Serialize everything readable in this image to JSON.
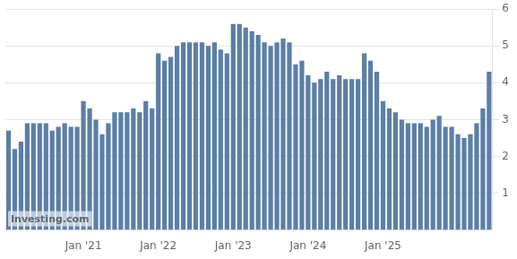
{
  "chart_data": {
    "type": "bar",
    "categories": [
      null,
      null,
      null,
      null,
      null,
      null,
      null,
      null,
      null,
      null,
      null,
      null,
      "Jan '21",
      null,
      null,
      null,
      null,
      null,
      null,
      null,
      null,
      null,
      null,
      null,
      "Jan '22",
      null,
      null,
      null,
      null,
      null,
      null,
      null,
      null,
      null,
      null,
      null,
      "Jan '23",
      null,
      null,
      null,
      null,
      null,
      null,
      null,
      null,
      null,
      null,
      null,
      "Jan '24",
      null,
      null,
      null,
      null,
      null,
      null,
      null,
      null,
      null,
      null,
      null,
      "Jan '25",
      null,
      null,
      null,
      null,
      null,
      null,
      null,
      null,
      null,
      null,
      null,
      null,
      null,
      null,
      null,
      null,
      null
    ],
    "values": [
      2.7,
      2.2,
      2.4,
      2.9,
      2.9,
      2.9,
      2.9,
      2.7,
      2.8,
      2.9,
      2.8,
      2.8,
      3.5,
      3.3,
      3.0,
      2.6,
      2.9,
      3.2,
      3.2,
      3.2,
      3.3,
      3.2,
      3.5,
      3.3,
      4.8,
      4.6,
      4.7,
      5.0,
      5.1,
      5.1,
      5.1,
      5.1,
      5.0,
      5.1,
      4.9,
      4.8,
      5.6,
      5.6,
      5.5,
      5.4,
      5.3,
      5.1,
      5.0,
      5.1,
      5.2,
      5.1,
      4.5,
      4.6,
      4.2,
      4.0,
      4.1,
      4.3,
      4.1,
      4.2,
      4.1,
      4.1,
      4.1,
      4.8,
      4.6,
      4.3,
      3.5,
      3.3,
      3.2,
      3.0,
      2.9,
      2.9,
      2.9,
      2.8,
      3.0,
      3.1,
      2.8,
      2.8,
      2.6,
      2.5,
      2.6,
      2.9,
      3.3,
      4.3
    ],
    "color": "#5b7fa6",
    "ylim": [
      0,
      6
    ],
    "yticks": [
      1,
      2,
      3,
      4,
      5,
      6
    ],
    "grid": true,
    "annotations": [
      "Investing.com"
    ]
  }
}
